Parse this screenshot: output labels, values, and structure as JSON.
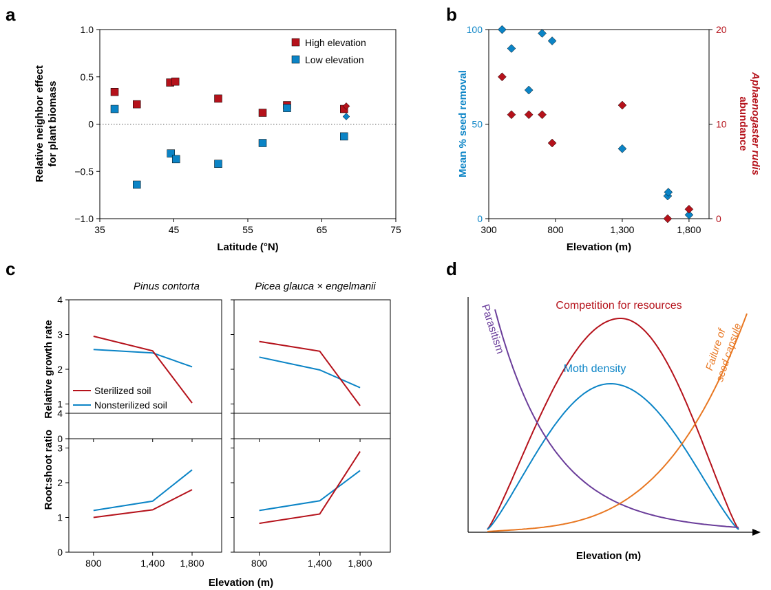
{
  "colors": {
    "red": "#b5121b",
    "blue": "#0b84c6",
    "purple": "#6a3d9a",
    "orange": "#e87722",
    "black": "#000000"
  },
  "chart_data": [
    {
      "panel": "a",
      "type": "scatter",
      "xlabel": "Latitude (°N)",
      "ylabel_lines": [
        "Relative neighbor effect",
        "for plant biomass"
      ],
      "xlim": [
        35,
        75
      ],
      "ylim": [
        -1.0,
        1.0
      ],
      "x_ticks": [
        35,
        45,
        55,
        65,
        75
      ],
      "y_ticks": [
        -1.0,
        -0.5,
        0,
        0.5,
        1.0
      ],
      "y_tick_labels": [
        "−1.0",
        "−0.5",
        "0",
        "0.5",
        "1.0"
      ],
      "reference_line_y": 0,
      "legend_position": "top-right",
      "series": [
        {
          "name": "High elevation",
          "color": "#b5121b",
          "marker": "square",
          "points": [
            [
              37,
              0.34
            ],
            [
              40,
              0.21
            ],
            [
              44.5,
              0.44
            ],
            [
              45.2,
              0.45
            ],
            [
              51,
              0.27
            ],
            [
              57,
              0.12
            ],
            [
              60.3,
              0.2
            ],
            [
              68,
              0.16
            ]
          ]
        },
        {
          "name": "Low elevation",
          "color": "#0b84c6",
          "marker": "square",
          "points": [
            [
              37,
              0.16
            ],
            [
              40,
              -0.64
            ],
            [
              44.6,
              -0.31
            ],
            [
              45.3,
              -0.37
            ],
            [
              51,
              -0.42
            ],
            [
              57,
              -0.2
            ],
            [
              60.3,
              0.17
            ],
            [
              68,
              -0.13
            ]
          ]
        },
        {
          "color": "#b5121b",
          "marker": "diamond",
          "points": [
            [
              68.3,
              0.19
            ]
          ]
        },
        {
          "color": "#0b84c6",
          "marker": "diamond",
          "points": [
            [
              68.3,
              0.08
            ]
          ]
        }
      ]
    },
    {
      "panel": "b",
      "type": "scatter",
      "xlabel": "Elevation (m)",
      "ylabel": "Mean % seed removal",
      "y2label_lines": [
        "Aphaenogaster rudis",
        "abundance"
      ],
      "xlim": [
        300,
        1950
      ],
      "x_ticks": [
        300,
        800,
        1300,
        1800
      ],
      "x_tick_labels": [
        "300",
        "800",
        "1,300",
        "1,800"
      ],
      "ylim": [
        0,
        100
      ],
      "y_ticks": [
        0,
        50,
        100
      ],
      "y2lim": [
        0,
        20
      ],
      "y2_ticks": [
        0,
        10,
        20
      ],
      "series": [
        {
          "axis": "left",
          "color": "#0b84c6",
          "marker": "diamond",
          "points": [
            [
              400,
              100
            ],
            [
              470,
              90
            ],
            [
              600,
              68
            ],
            [
              700,
              98
            ],
            [
              775,
              94
            ],
            [
              1300,
              37
            ],
            [
              1640,
              12
            ],
            [
              1645,
              14
            ],
            [
              1800,
              2
            ]
          ]
        },
        {
          "axis": "right",
          "color": "#b5121b",
          "marker": "diamond",
          "points": [
            [
              400,
              15
            ],
            [
              470,
              11
            ],
            [
              600,
              11
            ],
            [
              700,
              11
            ],
            [
              775,
              8
            ],
            [
              1300,
              12
            ],
            [
              1640,
              0
            ],
            [
              1800,
              1
            ]
          ]
        }
      ]
    },
    {
      "panel": "c",
      "type": "line",
      "xlabel": "Elevation (m)",
      "x": [
        800,
        1400,
        1800
      ],
      "x_tick_labels": [
        "800",
        "1,400",
        "1,800"
      ],
      "xlim": [
        550,
        2100
      ],
      "ylim": [
        0,
        4
      ],
      "y_ticks": [
        0,
        1,
        2,
        3,
        4
      ],
      "legend_position": "lower-left of top-left subplot",
      "legend": [
        {
          "name": "Sterilized soil",
          "color": "#b5121b"
        },
        {
          "name": "Nonsterilized soil",
          "color": "#0b84c6"
        }
      ],
      "columns": [
        "Pinus contorta",
        "Picea glauca × engelmanii"
      ],
      "rows": [
        "Relative growth rate",
        "Root:shoot ratio"
      ],
      "subplots": [
        {
          "row": 0,
          "col": 0,
          "sterilized": [
            2.95,
            2.53,
            1.03
          ],
          "nonsterilized": [
            2.57,
            2.47,
            2.07
          ]
        },
        {
          "row": 0,
          "col": 1,
          "sterilized": [
            2.8,
            2.52,
            0.95
          ],
          "nonsterilized": [
            2.35,
            1.98,
            1.47
          ]
        },
        {
          "row": 1,
          "col": 0,
          "sterilized": [
            1.0,
            1.22,
            1.8
          ],
          "nonsterilized": [
            1.2,
            1.47,
            2.37
          ]
        },
        {
          "row": 1,
          "col": 1,
          "sterilized": [
            0.83,
            1.1,
            2.9
          ],
          "nonsterilized": [
            1.2,
            1.48,
            2.35
          ]
        }
      ]
    },
    {
      "panel": "d",
      "type": "line",
      "xlabel": "Elevation (m)",
      "conceptual": true,
      "curves": [
        {
          "name": "Competition for resources",
          "color": "#b5121b"
        },
        {
          "name": "Moth density",
          "color": "#0b84c6"
        },
        {
          "name": "Parasitism",
          "color": "#6a3d9a"
        },
        {
          "name_lines": [
            "Failure of",
            "seed capsule"
          ],
          "color": "#e87722"
        }
      ]
    }
  ]
}
